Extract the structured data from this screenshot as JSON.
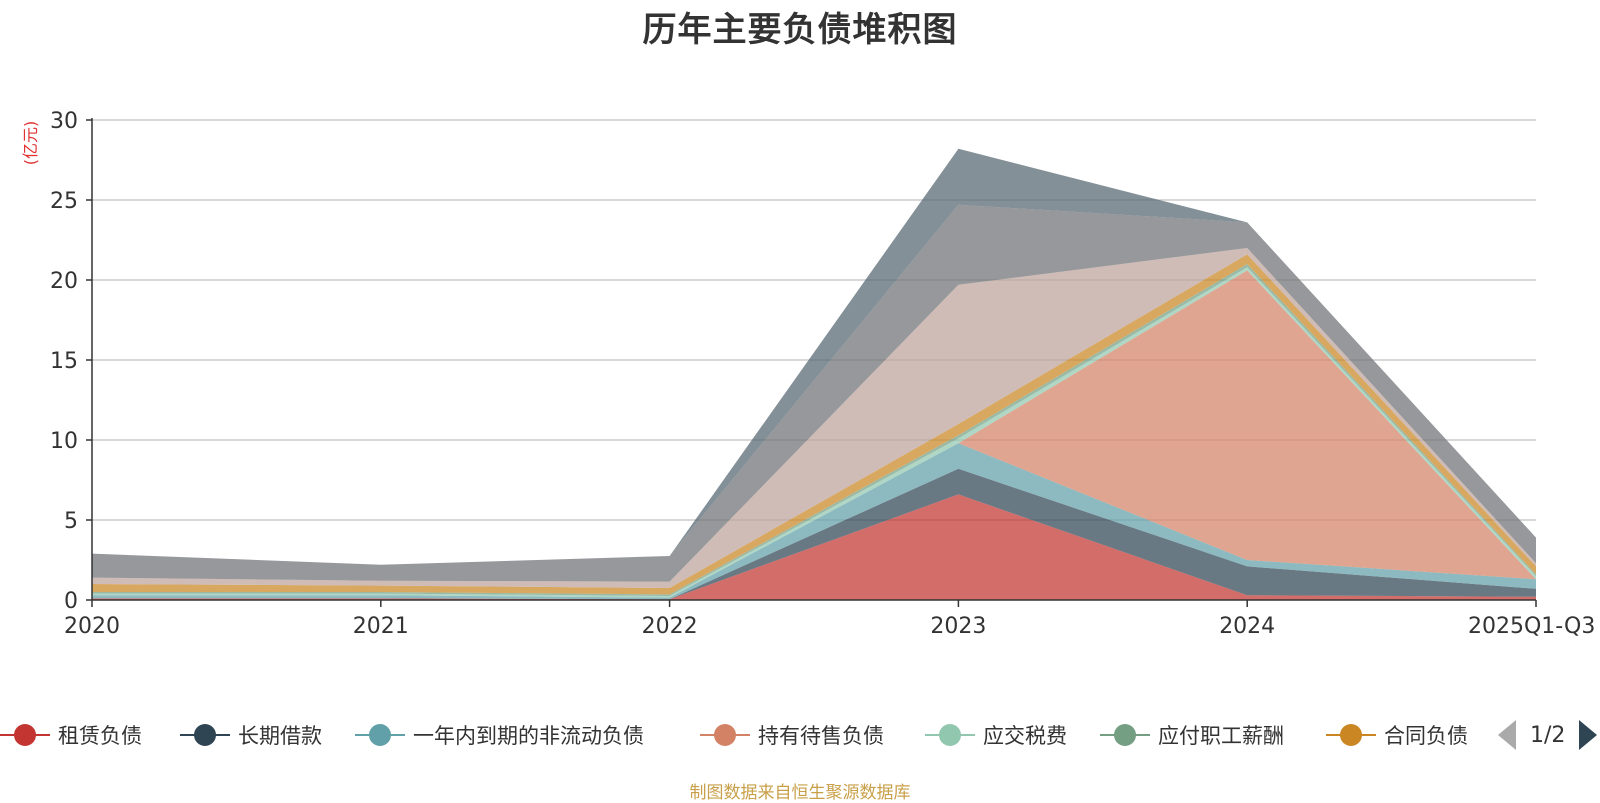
{
  "chart_data": {
    "type": "area",
    "stacked": true,
    "title": "历年主要负债堆积图",
    "ylabel": "(亿元)",
    "ylim": [
      0,
      30
    ],
    "yticks": [
      0,
      5,
      10,
      15,
      20,
      25,
      30
    ],
    "categories": [
      "2020",
      "2021",
      "2022",
      "2023",
      "2024",
      "2025Q1-Q3"
    ],
    "grid": true,
    "legend_position": "bottom",
    "series": [
      {
        "name": "租赁负债",
        "color": "#c23531",
        "values": [
          0.1,
          0.1,
          0.05,
          6.6,
          0.3,
          0.2
        ]
      },
      {
        "name": "长期借款",
        "color": "#2f4554",
        "values": [
          0,
          0,
          0,
          1.6,
          1.8,
          0.5
        ]
      },
      {
        "name": "一年内到期的非流动负债",
        "color": "#61a0a8",
        "values": [
          0.2,
          0.2,
          0.1,
          1.6,
          0.4,
          0.6
        ]
      },
      {
        "name": "持有待售负债",
        "color": "#d48265",
        "values": [
          0,
          0,
          0,
          0,
          18.1,
          0
        ]
      },
      {
        "name": "应交税费",
        "color": "#91c7ae",
        "values": [
          0.1,
          0.1,
          0.1,
          0.3,
          0.2,
          0.2
        ]
      },
      {
        "name": "应付职工薪酬",
        "color": "#749f83",
        "values": [
          0.1,
          0.1,
          0.1,
          0.2,
          0.2,
          0.1
        ]
      },
      {
        "name": "合同负债",
        "color": "#ca8622",
        "values": [
          0.5,
          0.4,
          0.4,
          0.7,
          0.6,
          0.5
        ]
      },
      {
        "name": "",
        "color": "#bda29a",
        "values": [
          0.4,
          0.3,
          0.4,
          8.7,
          0.4,
          0.2
        ]
      },
      {
        "name": "",
        "color": "#6e7074",
        "values": [
          1.5,
          1.0,
          1.6,
          5.0,
          1.6,
          1.6
        ]
      },
      {
        "name": "",
        "color": "#546570",
        "values": [
          0,
          0,
          0,
          3.5,
          0,
          0
        ]
      }
    ]
  },
  "legend": {
    "page": "1/2"
  },
  "source_note": "制图数据来自恒生聚源数据库"
}
